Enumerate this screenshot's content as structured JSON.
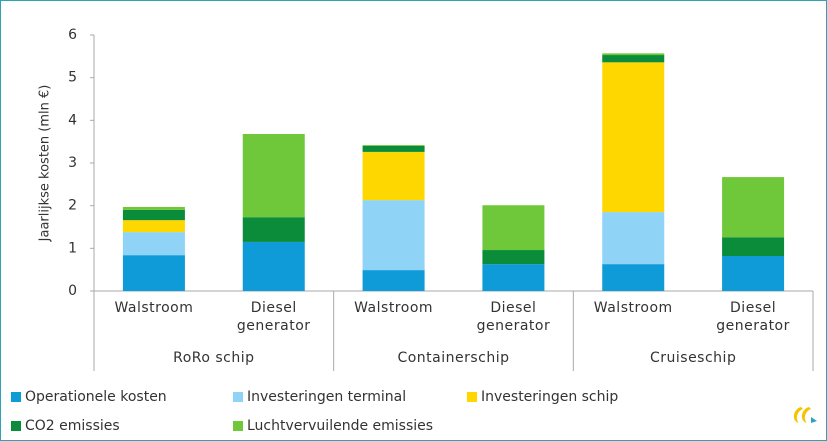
{
  "chart_data": {
    "type": "stacked_bar",
    "y_axis_label": "Jaarlijkse kosten (mln €)",
    "groups": [
      {
        "name": "RoRo schip",
        "categories": [
          "Walstroom",
          "Diesel generator"
        ]
      },
      {
        "name": "Containerschip",
        "categories": [
          "Walstroom",
          "Diesel generator"
        ]
      },
      {
        "name": "Cruiseschip",
        "categories": [
          "Walstroom",
          "Diesel generator"
        ]
      }
    ],
    "series": [
      {
        "name": "Operationele kosten",
        "color": "#0f9bd7",
        "values": [
          0.84,
          1.15,
          0.49,
          0.63,
          0.63,
          0.82
        ]
      },
      {
        "name": "Investeringen terminal",
        "color": "#8fd3f7",
        "values": [
          0.54,
          0,
          1.64,
          0,
          1.22,
          0
        ]
      },
      {
        "name": "Investeringen schip",
        "color": "#ffd700",
        "values": [
          0.28,
          0,
          1.13,
          0,
          3.51,
          0
        ]
      },
      {
        "name": "CO2 emissies",
        "color": "#0b8c3a",
        "values": [
          0.24,
          0.58,
          0.14,
          0.33,
          0.17,
          0.44
        ]
      },
      {
        "name": "Luchtvervuilende emissies",
        "color": "#6fc83a",
        "values": [
          0.07,
          1.95,
          0.02,
          1.05,
          0.04,
          1.41
        ]
      }
    ],
    "ylim": [
      0,
      6
    ],
    "yticks": [
      0,
      1,
      2,
      3,
      4,
      5,
      6
    ]
  }
}
